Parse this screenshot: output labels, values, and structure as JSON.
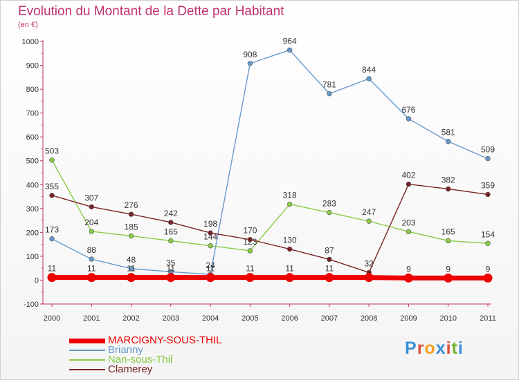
{
  "header": {
    "title": "Evolution du Montant de la Dette par Habitant",
    "unit": "(en €)"
  },
  "logo": {
    "text": "Proxiti",
    "colors": [
      "#3a8fd6",
      "#e0503a",
      "#f0a020",
      "#3a8fd6",
      "#e0503a",
      "#70b030",
      "#3a8fd6"
    ]
  },
  "chart_data": {
    "type": "line",
    "x": [
      "2000",
      "2001",
      "2002",
      "2003",
      "2004",
      "2005",
      "2006",
      "2007",
      "2008",
      "2009",
      "2010",
      "2011"
    ],
    "ylim": [
      -100,
      1000
    ],
    "yticks": [
      -100,
      0,
      100,
      200,
      300,
      400,
      500,
      600,
      700,
      800,
      900,
      1000
    ],
    "grid": false,
    "legend_position": "bottom-left",
    "series": [
      {
        "name": "MARCIGNY-SOUS-THIL",
        "color": "#ee0000",
        "values": [
          11,
          11,
          11,
          11,
          11,
          11,
          11,
          11,
          11,
          9,
          9,
          9
        ],
        "labels_shown": [
          true,
          true,
          true,
          true,
          true,
          true,
          true,
          true,
          false,
          true,
          true,
          true
        ]
      },
      {
        "name": "Brianny",
        "color": "#6699cc",
        "values": [
          173,
          88,
          48,
          35,
          24,
          908,
          964,
          781,
          844,
          676,
          581,
          509
        ],
        "labels_shown": [
          true,
          true,
          true,
          true,
          true,
          true,
          true,
          true,
          true,
          true,
          true,
          true
        ]
      },
      {
        "name": "Nan-sous-Thil",
        "color": "#88cc44",
        "values": [
          503,
          204,
          185,
          165,
          144,
          123,
          318,
          283,
          247,
          203,
          165,
          154
        ],
        "labels_shown": [
          true,
          true,
          true,
          true,
          true,
          true,
          true,
          true,
          true,
          true,
          true,
          true
        ]
      },
      {
        "name": "Clamerey",
        "color": "#7a2222",
        "values": [
          355,
          307,
          276,
          242,
          198,
          170,
          130,
          87,
          32,
          402,
          382,
          359
        ],
        "labels_shown": [
          true,
          true,
          true,
          true,
          true,
          true,
          true,
          true,
          true,
          true,
          true,
          true
        ]
      }
    ]
  }
}
